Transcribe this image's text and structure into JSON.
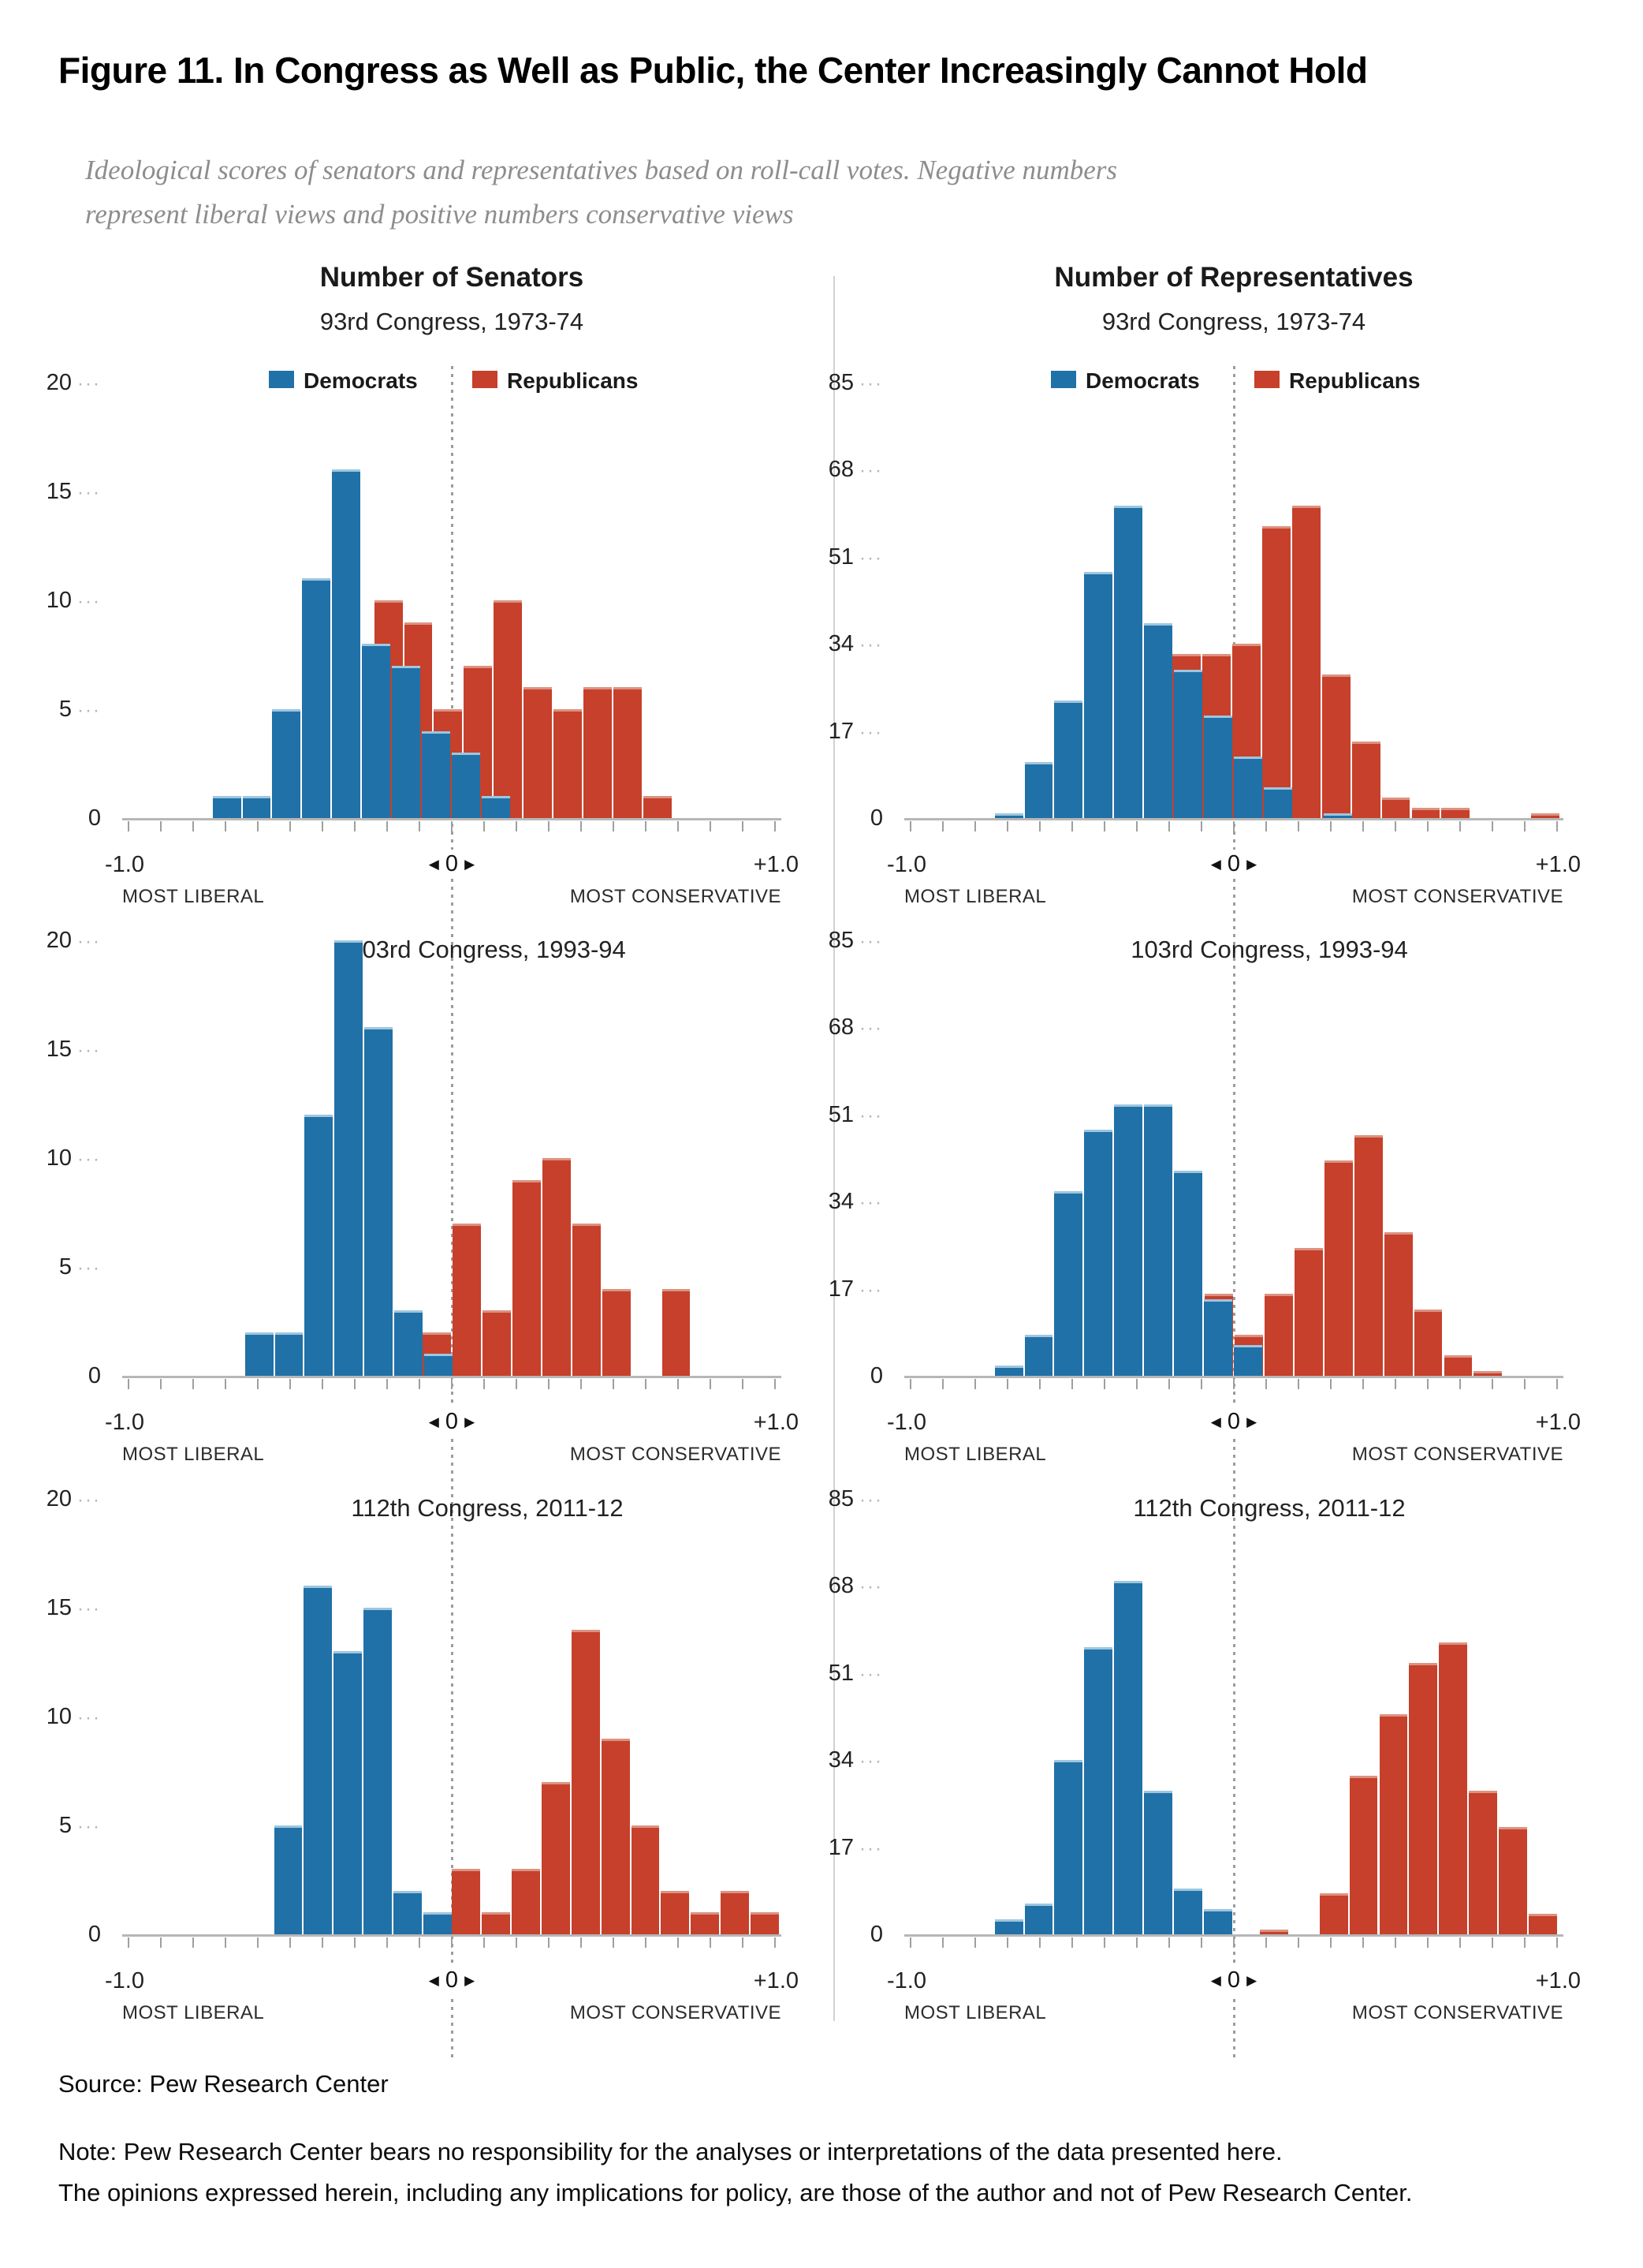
{
  "title": "Figure 11. In Congress as Well as Public, the Center Increasingly Cannot Hold",
  "subtitle": {
    "line1": "Ideological scores of senators and representatives based on roll-call votes. Negative numbers",
    "line2": "represent liberal views and positive numbers conservative views"
  },
  "legend": {
    "democrats": "Democrats",
    "republicans": "Republicans"
  },
  "colors": {
    "dem": "#2071a7",
    "rep": "#c6402b",
    "dem_edge": "#9ec6de",
    "rep_edge": "#dc9280",
    "axis": "#b7b7b7",
    "dotted": "#9c9c9c"
  },
  "axis_labels": {
    "min": "-1.0",
    "zero": "0",
    "max": "+1.0",
    "left": "MOST LIBERAL",
    "right": "MOST CONSERVATIVE"
  },
  "footer": {
    "source": "Source: Pew Research Center",
    "note_line1": "Note: Pew Research Center bears no responsibility for the analyses or interpretations of the data presented here.",
    "note_line2": "The opinions expressed herein, including any implications for policy, are those of the author and not of Pew Research Center."
  },
  "chart_data": [
    {
      "id": "senate-93",
      "type": "histogram",
      "col": 0,
      "row": 0,
      "title": "Number of Senators",
      "subtitle": "93rd Congress, 1973-74",
      "ylim": 20,
      "yticks": [
        0,
        5,
        10,
        15,
        20
      ],
      "xrange": [
        -1.0,
        1.0
      ],
      "bin_width": 0.0925,
      "series": [
        {
          "name": "Republicans",
          "key": "rep",
          "bin_start": -0.24,
          "values": [
            10,
            9,
            5,
            7,
            10,
            6,
            5,
            6,
            6,
            1
          ]
        },
        {
          "name": "Democrats",
          "key": "dem",
          "bin_start": -0.74,
          "values": [
            1,
            1,
            5,
            11,
            16,
            8,
            7,
            4,
            3,
            1
          ]
        }
      ]
    },
    {
      "id": "house-93",
      "type": "histogram",
      "col": 1,
      "row": 0,
      "title": "Number of Representatives",
      "subtitle": "93rd Congress, 1973-74",
      "ylim": 85,
      "yticks": [
        0,
        17,
        34,
        51,
        68,
        85
      ],
      "xrange": [
        -1.0,
        1.0
      ],
      "bin_width": 0.0925,
      "series": [
        {
          "name": "Republicans",
          "key": "rep",
          "bin_start": -0.19,
          "values": [
            32,
            32,
            34,
            57,
            61,
            28,
            15,
            4,
            2,
            2,
            0,
            0,
            1
          ]
        },
        {
          "name": "Democrats",
          "key": "dem",
          "bin_start": -0.74,
          "values": [
            1,
            11,
            23,
            48,
            61,
            38,
            29,
            20,
            12,
            6,
            0,
            1
          ]
        }
      ]
    },
    {
      "id": "senate-103",
      "type": "histogram",
      "col": 0,
      "row": 1,
      "title": "103rd Congress, 1993-94",
      "subtitle": "",
      "ylim": 20,
      "yticks": [
        0,
        5,
        10,
        15,
        20
      ],
      "xrange": [
        -1.0,
        1.0
      ],
      "bin_width": 0.0925,
      "series": [
        {
          "name": "Republicans",
          "key": "rep",
          "bin_start": -0.09,
          "values": [
            2,
            7,
            3,
            9,
            10,
            7,
            4,
            0,
            4
          ]
        },
        {
          "name": "Democrats",
          "key": "dem",
          "bin_start": -0.64,
          "values": [
            2,
            2,
            12,
            20,
            16,
            3,
            1
          ]
        }
      ]
    },
    {
      "id": "house-103",
      "type": "histogram",
      "col": 1,
      "row": 1,
      "title": "103rd Congress, 1993-94",
      "subtitle": "",
      "ylim": 85,
      "yticks": [
        0,
        17,
        34,
        51,
        68,
        85
      ],
      "xrange": [
        -1.0,
        1.0
      ],
      "bin_width": 0.0925,
      "series": [
        {
          "name": "Republicans",
          "key": "rep",
          "bin_start": -0.09,
          "values": [
            16,
            8,
            16,
            25,
            42,
            47,
            28,
            13,
            4,
            1
          ]
        },
        {
          "name": "Democrats",
          "key": "dem",
          "bin_start": -0.74,
          "values": [
            2,
            8,
            36,
            48,
            53,
            53,
            40,
            15,
            6
          ]
        }
      ]
    },
    {
      "id": "senate-112",
      "type": "histogram",
      "col": 0,
      "row": 2,
      "title": "112th Congress, 2011-12",
      "subtitle": "",
      "ylim": 20,
      "yticks": [
        0,
        5,
        10,
        15,
        20
      ],
      "xrange": [
        -1.0,
        1.0
      ],
      "bin_width": 0.0925,
      "series": [
        {
          "name": "Republicans",
          "key": "rep",
          "bin_start": 0.0,
          "values": [
            3,
            1,
            3,
            7,
            14,
            9,
            5,
            2,
            1,
            2,
            1
          ]
        },
        {
          "name": "Democrats",
          "key": "dem",
          "bin_start": -0.55,
          "values": [
            5,
            16,
            13,
            15,
            2,
            1
          ]
        }
      ]
    },
    {
      "id": "house-112",
      "type": "histogram",
      "col": 1,
      "row": 2,
      "title": "112th Congress, 2011-12",
      "subtitle": "",
      "ylim": 85,
      "yticks": [
        0,
        17,
        34,
        51,
        68,
        85
      ],
      "xrange": [
        -1.0,
        1.0
      ],
      "bin_width": 0.0925,
      "series": [
        {
          "name": "Republicans",
          "key": "rep",
          "bin_start": 0.08,
          "values": [
            1,
            0,
            8,
            31,
            43,
            53,
            57,
            28,
            21,
            4
          ]
        },
        {
          "name": "Democrats",
          "key": "dem",
          "bin_start": -0.74,
          "values": [
            3,
            6,
            34,
            56,
            69,
            28,
            9,
            5
          ]
        }
      ]
    }
  ]
}
